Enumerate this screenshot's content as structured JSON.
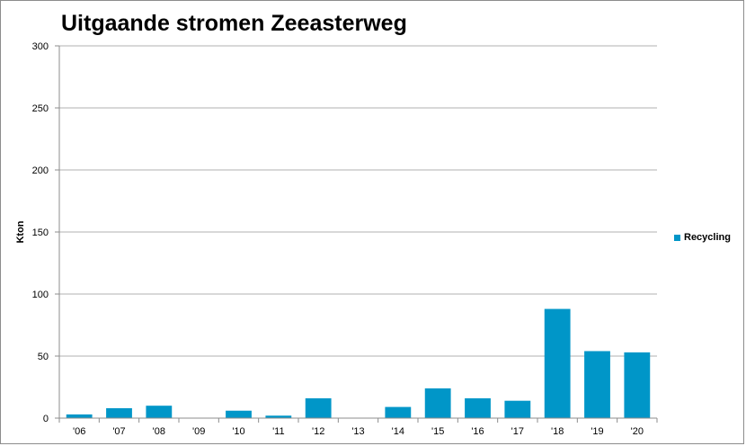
{
  "chart_data": {
    "type": "bar",
    "title": "Uitgaande stromen Zeeasterweg",
    "ylabel": "Kton",
    "xlabel": "",
    "ylim": [
      0,
      300
    ],
    "yticks": [
      0,
      50,
      100,
      150,
      200,
      250,
      300
    ],
    "categories": [
      "'06",
      "'07",
      "'08",
      "'09",
      "'10",
      "'11",
      "'12",
      "'13",
      "'14",
      "'15",
      "'16",
      "'17",
      "'18",
      "'19",
      "'20"
    ],
    "series": [
      {
        "name": "Recycling",
        "color": "#0096c8",
        "values": [
          3,
          8,
          10,
          0,
          6,
          2,
          16,
          0,
          9,
          24,
          16,
          14,
          88,
          54,
          53
        ]
      }
    ],
    "grid": true,
    "legend_position": "right"
  }
}
